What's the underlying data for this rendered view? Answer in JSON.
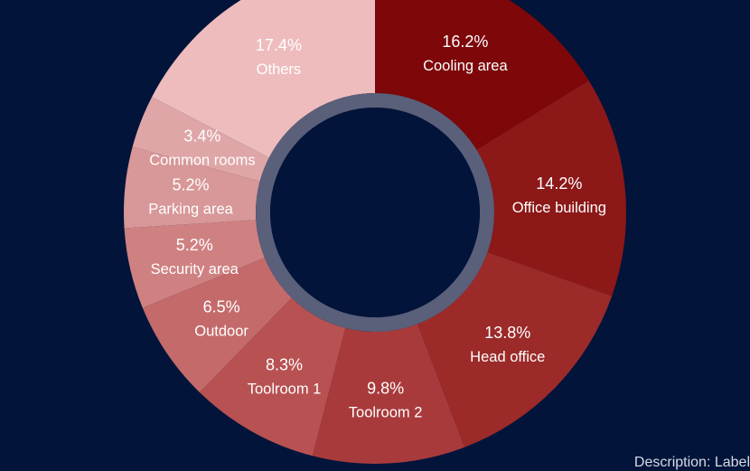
{
  "chart_data": {
    "type": "pie",
    "variant": "donut",
    "unit": "%",
    "slices": [
      {
        "label": "Cooling area",
        "value": 16.2,
        "value_label": "16.2%",
        "color": "#7d0709"
      },
      {
        "label": "Office building",
        "value": 14.2,
        "value_label": "14.2%",
        "color": "#8c1818"
      },
      {
        "label": "Head office",
        "value": 13.8,
        "value_label": "13.8%",
        "color": "#9b2a29"
      },
      {
        "label": "Toolroom 2",
        "value": 9.8,
        "value_label": "9.8%",
        "color": "#a93a3b"
      },
      {
        "label": "Toolroom 1",
        "value": 8.3,
        "value_label": "8.3%",
        "color": "#b85152"
      },
      {
        "label": "Outdoor",
        "value": 6.5,
        "value_label": "6.5%",
        "color": "#c46a6b"
      },
      {
        "label": "Security area",
        "value": 5.2,
        "value_label": "5.2%",
        "color": "#cf8182"
      },
      {
        "label": "Parking area",
        "value": 5.2,
        "value_label": "5.2%",
        "color": "#d89798"
      },
      {
        "label": "Common rooms",
        "value": 3.4,
        "value_label": "3.4%",
        "color": "#dfa6a7"
      },
      {
        "label": "Others",
        "value": 17.4,
        "value_label": "17.4%",
        "color": "#eebcbd"
      }
    ],
    "background_color": "#02143a",
    "inner_ring_color": "#5a5f7a"
  },
  "credit_text": "Description: Label"
}
